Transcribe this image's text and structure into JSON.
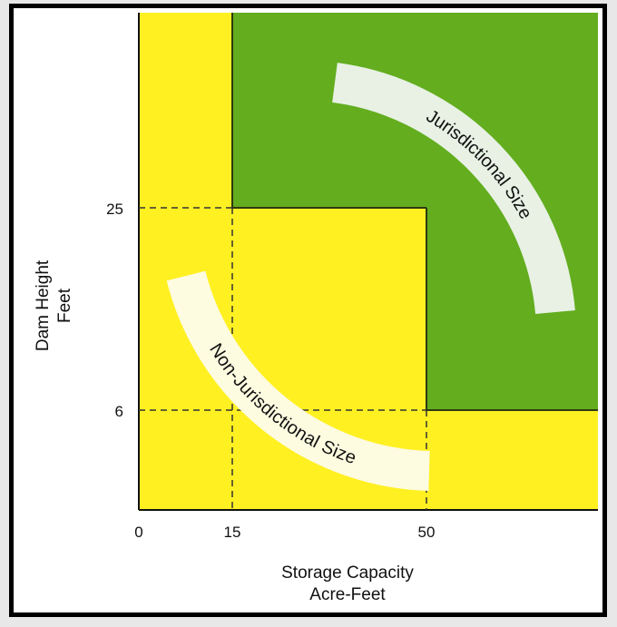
{
  "axes": {
    "y_label_line1": "Dam Height",
    "y_label_line2": "Feet",
    "x_label_line1": "Storage Capacity",
    "x_label_line2": "Acre-Feet",
    "x_ticks": [
      "0",
      "15",
      "50"
    ],
    "y_ticks": [
      "25",
      "6"
    ]
  },
  "regions": {
    "jurisdictional": "Jurisdictional Size",
    "non_jurisdictional": "Non-Jurisdictional Size"
  },
  "colors": {
    "yellow": "#fff022",
    "green": "#63ad1f",
    "band": "#e8f1e4",
    "dashed": "#333333"
  }
}
